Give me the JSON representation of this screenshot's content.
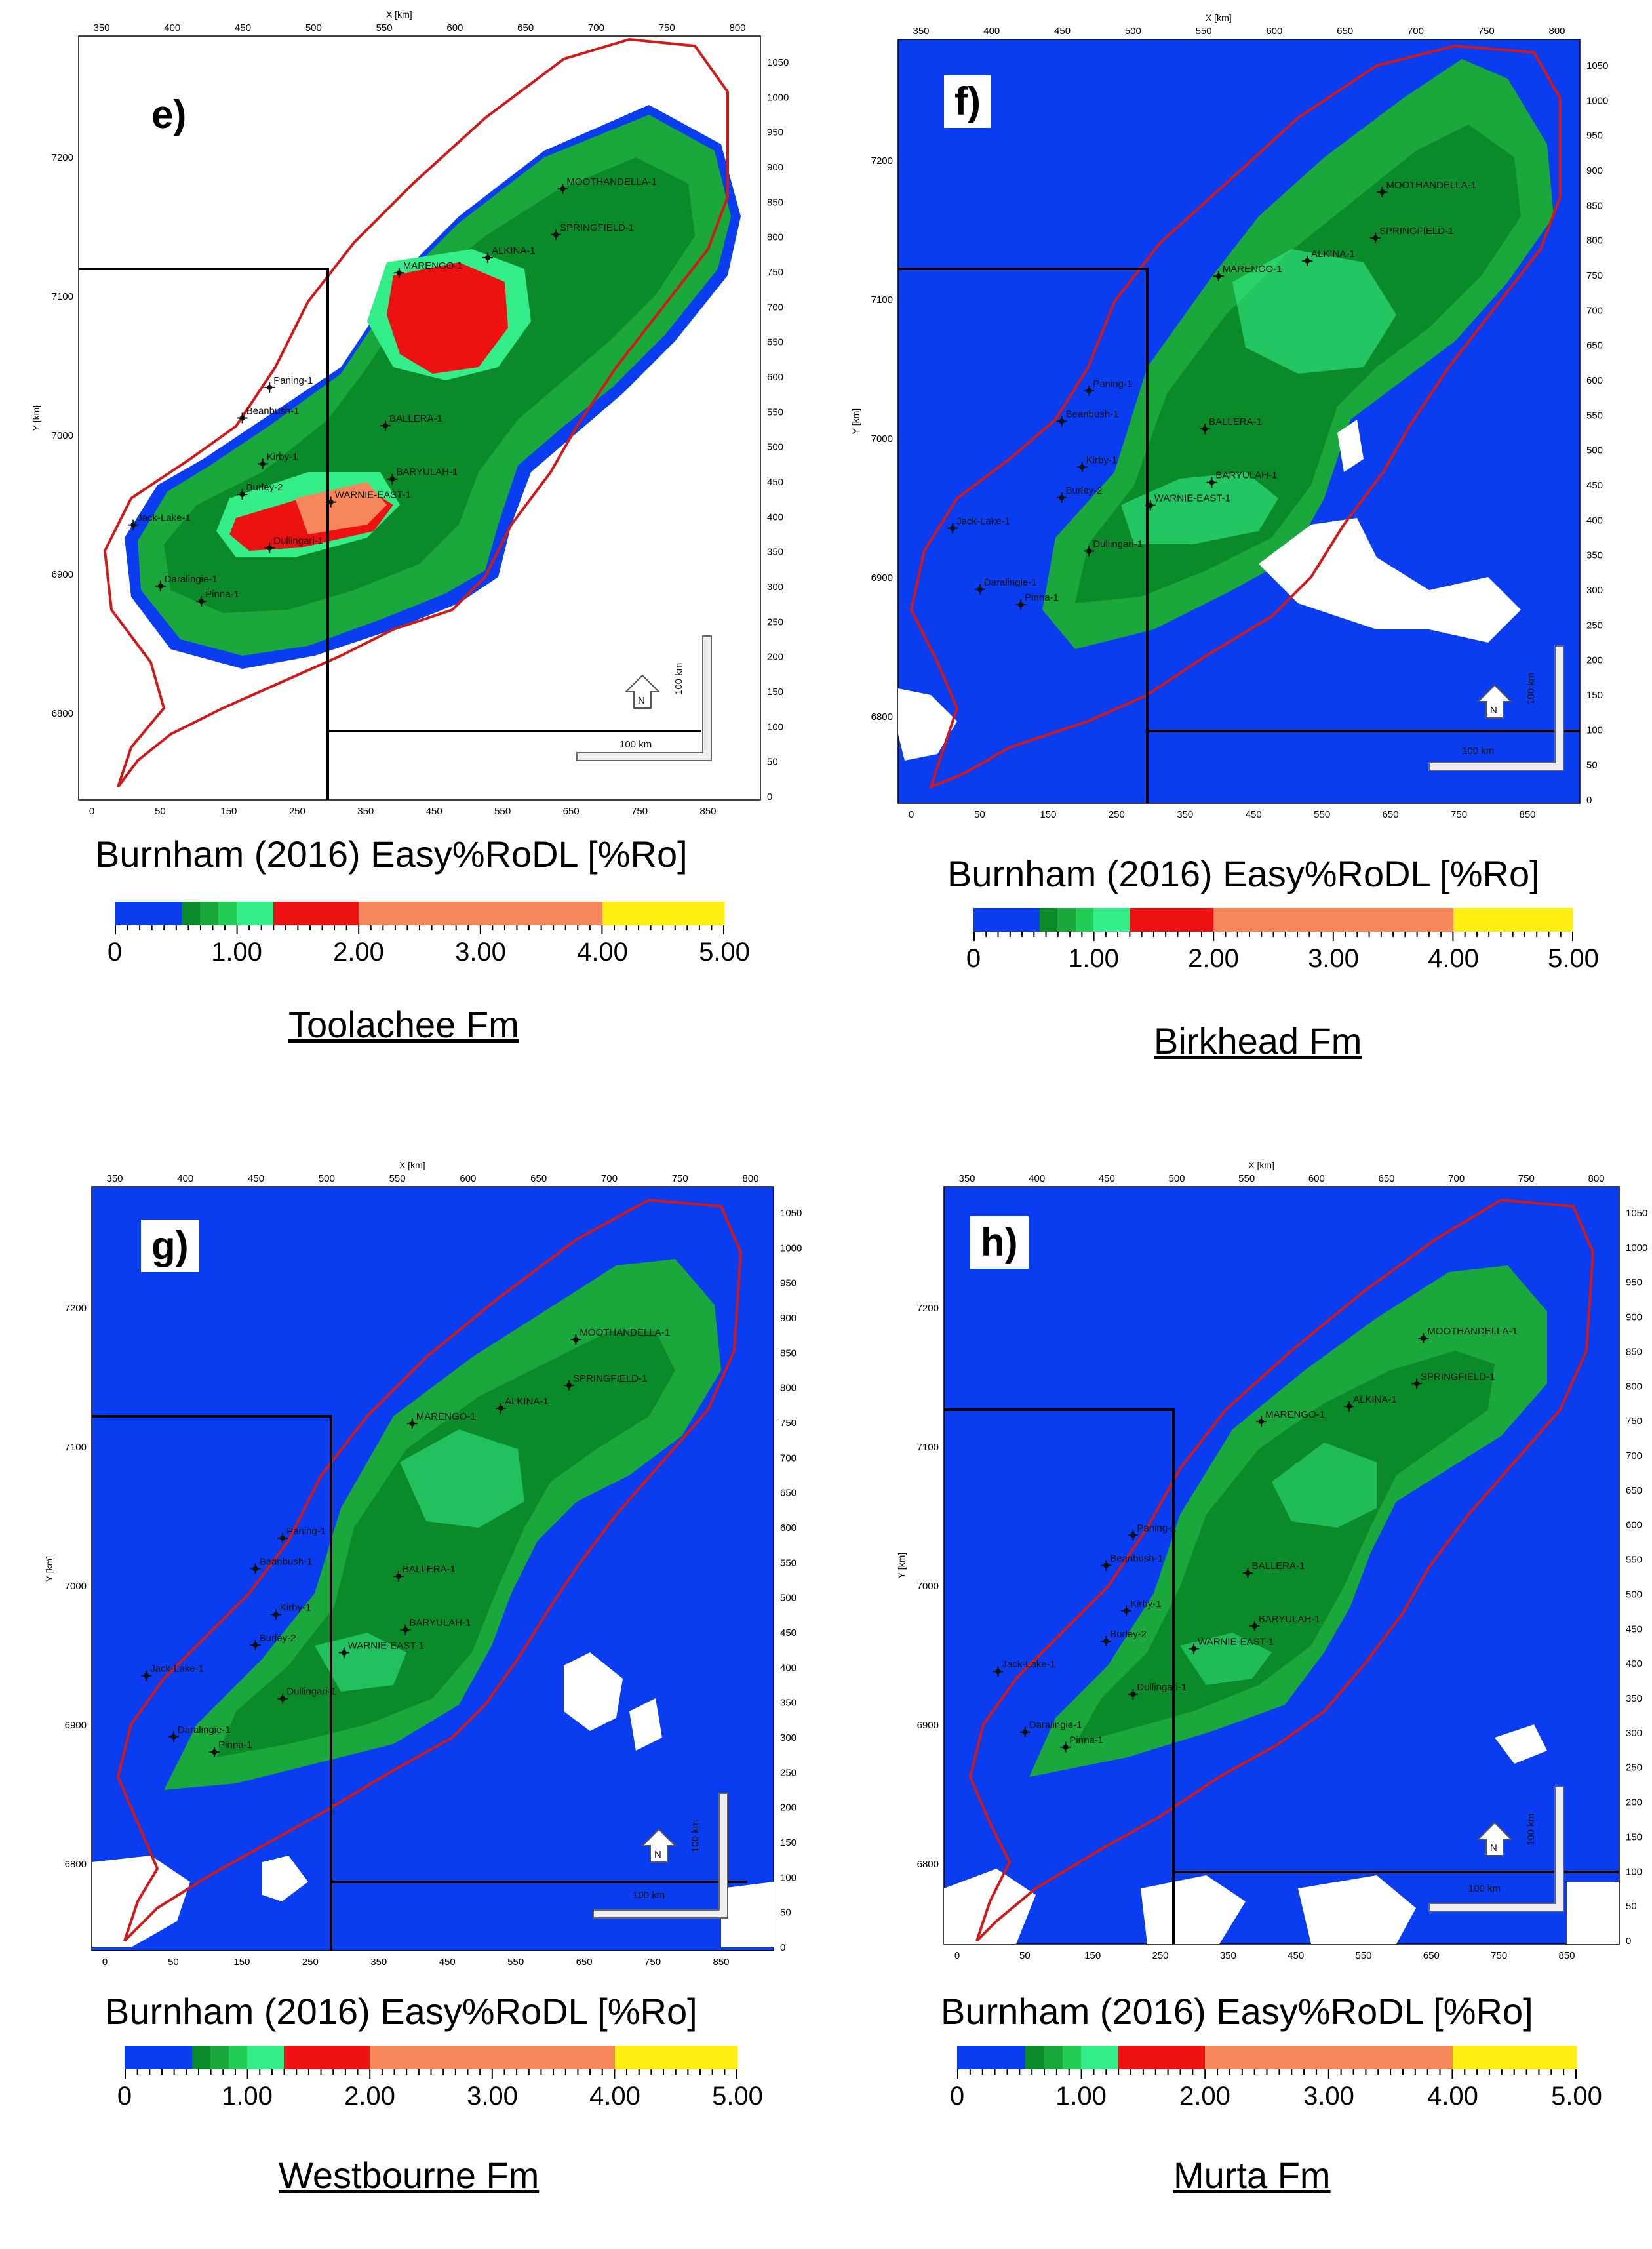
{
  "legend": {
    "title": "Burnham (2016) Easy%RoDL [%Ro]",
    "tick_labels": [
      "0",
      "1.00",
      "2.00",
      "3.00",
      "4.00",
      "5.00"
    ],
    "bands": [
      {
        "from": 0.0,
        "to": 0.55,
        "color": "#0a3cf0"
      },
      {
        "from": 0.55,
        "to": 0.7,
        "color": "#0b8a2a"
      },
      {
        "from": 0.7,
        "to": 0.85,
        "color": "#1aa83c"
      },
      {
        "from": 0.85,
        "to": 1.0,
        "color": "#22cc55"
      },
      {
        "from": 1.0,
        "to": 1.3,
        "color": "#33ee88"
      },
      {
        "from": 1.3,
        "to": 2.0,
        "color": "#ee1111"
      },
      {
        "from": 2.0,
        "to": 4.0,
        "color": "#f5875a"
      },
      {
        "from": 4.0,
        "to": 5.0,
        "color": "#ffee11"
      }
    ]
  },
  "axes": {
    "x_label": "X [km]",
    "y_label": "Y [km]",
    "x_top_ticks": [
      "350",
      "400",
      "450",
      "500",
      "550",
      "600",
      "650",
      "700",
      "750",
      "800"
    ],
    "x_bottom_ticks": [
      "0",
      "50",
      "150",
      "250",
      "350",
      "450",
      "550",
      "650",
      "750",
      "850"
    ],
    "y_left_ticks": [
      "7200",
      "7100",
      "7000",
      "6900",
      "6800"
    ],
    "y_right_ticks": [
      "1050",
      "1000",
      "950",
      "900",
      "850",
      "800",
      "750",
      "700",
      "650",
      "600",
      "550",
      "500",
      "450",
      "400",
      "350",
      "300",
      "250",
      "200",
      "150",
      "100",
      "50",
      "0"
    ]
  },
  "scale": {
    "horizontal": "100 km",
    "vertical": "100 km",
    "north": "N"
  },
  "wells": [
    {
      "name": "MOOTHANDELLA-1"
    },
    {
      "name": "SPRINGFIELD-1"
    },
    {
      "name": "ALKINA-1"
    },
    {
      "name": "MARENGO-1"
    },
    {
      "name": "Paning-1"
    },
    {
      "name": "Beanbush-1"
    },
    {
      "name": "BALLERA-1"
    },
    {
      "name": "Kirby-1"
    },
    {
      "name": "Burley-2"
    },
    {
      "name": "BARYULAH-1"
    },
    {
      "name": "WARNIE-EAST-1"
    },
    {
      "name": "Jack-Lake-1"
    },
    {
      "name": "Dullingari-1"
    },
    {
      "name": "Daralingie-1"
    },
    {
      "name": "Pinna-1"
    }
  ],
  "panels": [
    {
      "id": "e",
      "label": "e)",
      "formation": "Toolachee Fm",
      "mode": "hot"
    },
    {
      "id": "f",
      "label": "f)",
      "formation": "Birkhead Fm",
      "mode": "mid"
    },
    {
      "id": "g",
      "label": "g)",
      "formation": "Westbourne Fm",
      "mode": "low"
    },
    {
      "id": "h",
      "label": "h)",
      "formation": "Murta Fm",
      "mode": "lower"
    }
  ]
}
